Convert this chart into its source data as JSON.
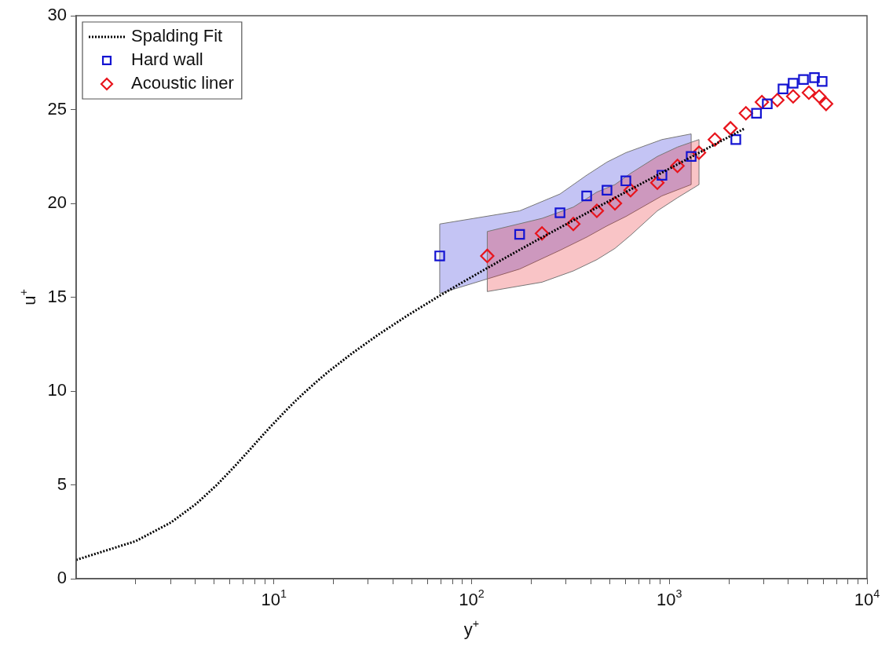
{
  "chart_data": {
    "type": "scatter",
    "xlabel": "y$^{+}$",
    "ylabel": "u$^{+}$",
    "log": "x",
    "xlim": [
      1,
      10000
    ],
    "ylim": [
      0,
      30
    ],
    "xticks": [
      {
        "value": 2,
        "label": null
      },
      {
        "value": 3,
        "label": null
      },
      {
        "value": 4,
        "label": null
      },
      {
        "value": 5,
        "label": null
      },
      {
        "value": 6,
        "label": null
      },
      {
        "value": 7,
        "label": null
      },
      {
        "value": 8,
        "label": null
      },
      {
        "value": 9,
        "label": null
      },
      {
        "value": 10,
        "label": "10$^{1}$"
      },
      {
        "value": 20,
        "label": null
      },
      {
        "value": 30,
        "label": null
      },
      {
        "value": 40,
        "label": null
      },
      {
        "value": 50,
        "label": null
      },
      {
        "value": 60,
        "label": null
      },
      {
        "value": 70,
        "label": null
      },
      {
        "value": 80,
        "label": null
      },
      {
        "value": 90,
        "label": null
      },
      {
        "value": 100,
        "label": "10$^{2}$"
      },
      {
        "value": 200,
        "label": null
      },
      {
        "value": 300,
        "label": null
      },
      {
        "value": 400,
        "label": null
      },
      {
        "value": 500,
        "label": null
      },
      {
        "value": 600,
        "label": null
      },
      {
        "value": 700,
        "label": null
      },
      {
        "value": 800,
        "label": null
      },
      {
        "value": 900,
        "label": null
      },
      {
        "value": 1000,
        "label": "10$^{3}$"
      },
      {
        "value": 2000,
        "label": null
      },
      {
        "value": 3000,
        "label": null
      },
      {
        "value": 4000,
        "label": null
      },
      {
        "value": 5000,
        "label": null
      },
      {
        "value": 6000,
        "label": null
      },
      {
        "value": 7000,
        "label": null
      },
      {
        "value": 8000,
        "label": null
      },
      {
        "value": 9000,
        "label": null
      },
      {
        "value": 10000,
        "label": "10$^{4}$"
      }
    ],
    "yticks": [
      0,
      5,
      10,
      15,
      20,
      25,
      30
    ],
    "grid": false,
    "legend": "top left",
    "series": [
      {
        "name": "Spalding Fit",
        "type": "line",
        "line_style": "dotted",
        "marker": "none",
        "color": "#000000",
        "x": [
          1.0,
          2.0,
          3.02,
          4.06,
          5.15,
          6.35,
          7.74,
          9.42,
          11.6,
          12.95,
          14.55,
          16.45,
          18.7,
          24.8,
          33.7,
          47.0,
          67.0,
          97.1,
          142.5,
          211,
          314.7,
          471,
          707.6,
          1064,
          1602,
          2412
        ],
        "values": [
          1,
          2,
          3,
          4,
          5,
          6,
          7,
          8,
          9,
          9.5,
          10,
          10.5,
          11,
          12,
          13,
          14,
          15,
          16,
          17,
          18,
          19,
          20,
          21,
          22,
          23,
          24
        ]
      },
      {
        "name": "Hard wall",
        "type": "scatter",
        "marker": "square",
        "color": "#1414d2",
        "x": [
          69,
          175,
          280,
          382,
          484,
          603,
          918,
          1290,
          2170,
          2760,
          3130,
          3760,
          4230,
          4770,
          5420,
          5930
        ],
        "values": [
          17.2,
          18.35,
          19.5,
          20.4,
          20.7,
          21.2,
          21.5,
          22.5,
          23.4,
          24.8,
          25.3,
          26.1,
          26.4,
          26.6,
          26.7,
          26.5
        ],
        "lower": [
          15.2,
          16.5,
          17.5,
          18.2,
          18.8,
          19.3,
          20.4,
          21.0,
          null,
          null,
          null,
          null,
          null,
          null,
          null,
          null
        ],
        "upper": [
          18.9,
          19.6,
          20.5,
          21.5,
          22.2,
          22.7,
          23.4,
          23.7,
          null,
          null,
          null,
          null,
          null,
          null,
          null,
          null
        ]
      },
      {
        "name": "Acoustic liner",
        "type": "scatter",
        "marker": "diamond",
        "color": "#e8141c",
        "x": [
          120,
          227,
          327,
          430,
          531,
          637,
          870,
          1100,
          1413,
          1700,
          2040,
          2440,
          2940,
          3520,
          4230,
          5080,
          5730,
          6210
        ],
        "values": [
          17.2,
          18.4,
          18.9,
          19.6,
          20.0,
          20.7,
          21.1,
          22.0,
          22.7,
          23.4,
          24.0,
          24.8,
          25.4,
          25.5,
          25.7,
          25.9,
          25.7,
          25.3
        ],
        "lower": [
          15.3,
          15.8,
          16.4,
          17.0,
          17.6,
          18.3,
          19.6,
          20.3,
          21.0,
          null,
          null,
          null,
          null,
          null,
          null,
          null,
          null,
          null
        ],
        "upper": [
          18.5,
          19.2,
          19.8,
          20.6,
          21.0,
          21.6,
          22.5,
          23.0,
          23.4,
          null,
          null,
          null,
          null,
          null,
          null,
          null,
          null,
          null
        ]
      }
    ]
  }
}
